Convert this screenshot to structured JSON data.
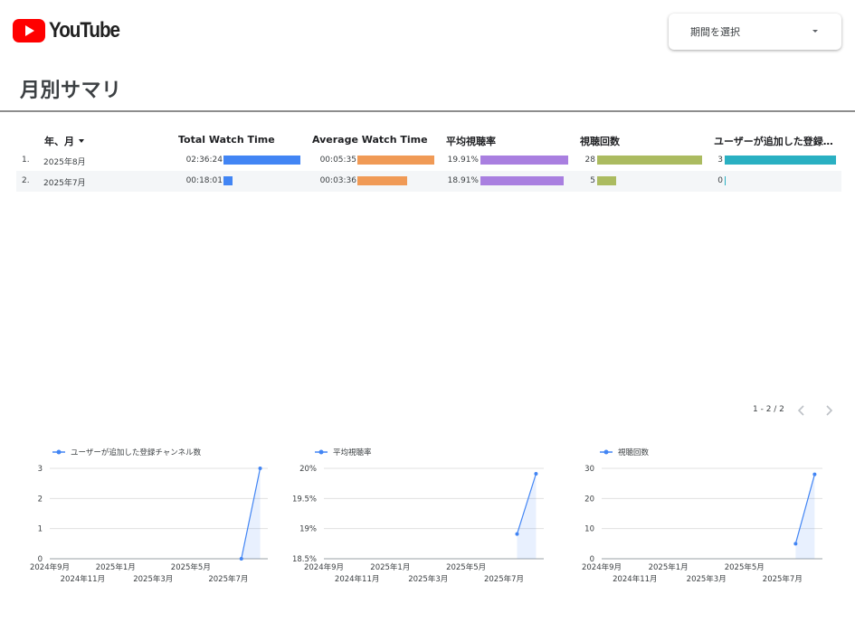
{
  "header": {
    "logo_text": "YouTube",
    "period_select": {
      "label": "期間を選択"
    }
  },
  "page_title": "月別サマリ",
  "table": {
    "columns": [
      "年、月",
      "Total Watch Time",
      "Average Watch Time",
      "平均視聴率",
      "視聴回数",
      "ユーザーが追加した登録…"
    ],
    "rows": [
      {
        "index": "1.",
        "month": "2025年8月",
        "total_watch_time": "02:36:24",
        "total_watch_time_frac": 1.0,
        "average_watch_time": "00:05:35",
        "average_watch_time_frac": 1.0,
        "avg_view_rate": "19.91%",
        "avg_view_rate_frac": 1.0,
        "views": "28",
        "views_frac": 1.0,
        "subscribers": "3",
        "subscribers_frac": 1.0
      },
      {
        "index": "2.",
        "month": "2025年7月",
        "total_watch_time": "00:18:01",
        "total_watch_time_frac": 0.115,
        "average_watch_time": "00:03:36",
        "average_watch_time_frac": 0.645,
        "avg_view_rate": "18.91%",
        "avg_view_rate_frac": 0.95,
        "views": "5",
        "views_frac": 0.179,
        "subscribers": "0",
        "subscribers_frac": 0.0
      }
    ],
    "bar_colors": [
      "#4285f4",
      "#f09a56",
      "#a97fe0",
      "#abbb60",
      "#2ab0c2"
    ]
  },
  "pagination": {
    "label": "1 - 2 / 2"
  },
  "chart_data": [
    {
      "type": "line",
      "legend": "ユーザーが追加した登録チャンネル数",
      "x_ticks_upper": [
        "2024年9月",
        "2025年1月",
        "2025年5月"
      ],
      "x_ticks_lower": [
        "2024年11月",
        "2025年3月",
        "2025年7月"
      ],
      "y_ticks": [
        "0",
        "1",
        "2",
        "3"
      ],
      "ylim": [
        0,
        3
      ],
      "x": [
        "2025年7月",
        "2025年8月"
      ],
      "values": [
        0,
        3
      ],
      "color": "#4285f4"
    },
    {
      "type": "line",
      "legend": "平均視聴率",
      "x_ticks_upper": [
        "2024年9月",
        "2025年1月",
        "2025年5月"
      ],
      "x_ticks_lower": [
        "2024年11月",
        "2025年3月",
        "2025年7月"
      ],
      "y_ticks": [
        "18.5%",
        "19%",
        "19.5%",
        "20%"
      ],
      "ylim": [
        18.5,
        20
      ],
      "x": [
        "2025年7月",
        "2025年8月"
      ],
      "values": [
        18.91,
        19.91
      ],
      "color": "#4285f4"
    },
    {
      "type": "line",
      "legend": "視聴回数",
      "x_ticks_upper": [
        "2024年9月",
        "2025年1月",
        "2025年5月"
      ],
      "x_ticks_lower": [
        "2024年11月",
        "2025年3月",
        "2025年7月"
      ],
      "y_ticks": [
        "0",
        "10",
        "20",
        "30"
      ],
      "ylim": [
        0,
        30
      ],
      "x": [
        "2025年7月",
        "2025年8月"
      ],
      "values": [
        5,
        28
      ],
      "color": "#4285f4"
    }
  ]
}
